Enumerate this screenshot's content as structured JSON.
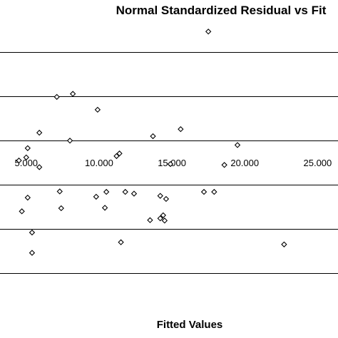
{
  "chart_data": {
    "type": "scatter",
    "title": "Normal Standardized Residual vs Fit",
    "xlabel": "Fitted Values",
    "ylabel": "",
    "x_ticks": [
      {
        "value": 5000,
        "label": "5.000"
      },
      {
        "value": 10000,
        "label": "10.000"
      },
      {
        "value": 15000,
        "label": "15.000"
      },
      {
        "value": 20000,
        "label": "20.000"
      },
      {
        "value": 25000,
        "label": "25.000"
      }
    ],
    "xlim": [
      3200,
      26400
    ],
    "ylim": [
      -3.5,
      3.2
    ],
    "y_gridlines": [
      2.5,
      1.5,
      0.5,
      -0.5,
      -1.5,
      -2.5
    ],
    "zero_line": 0,
    "grid": true,
    "legend": "none",
    "marker": "diamond-open",
    "colors": {
      "marker_stroke": "#000000",
      "marker_fill": "#ffffff",
      "gridline": "#000000"
    },
    "points": [
      {
        "x": 17500,
        "y": 2.97
      },
      {
        "x": 8200,
        "y": 1.56
      },
      {
        "x": 7100,
        "y": 1.49
      },
      {
        "x": 9900,
        "y": 1.2
      },
      {
        "x": 15600,
        "y": 0.76
      },
      {
        "x": 5900,
        "y": 0.68
      },
      {
        "x": 13700,
        "y": 0.6
      },
      {
        "x": 8000,
        "y": 0.5
      },
      {
        "x": 19500,
        "y": 0.4
      },
      {
        "x": 5100,
        "y": 0.33
      },
      {
        "x": 11400,
        "y": 0.21
      },
      {
        "x": 11200,
        "y": 0.15
      },
      {
        "x": 5000,
        "y": 0.12
      },
      {
        "x": 4500,
        "y": 0.05
      },
      {
        "x": 14900,
        "y": -0.03
      },
      {
        "x": 18600,
        "y": -0.05
      },
      {
        "x": 5900,
        "y": -0.1
      },
      {
        "x": 7300,
        "y": -0.65
      },
      {
        "x": 11800,
        "y": -0.66
      },
      {
        "x": 10500,
        "y": -0.66
      },
      {
        "x": 12400,
        "y": -0.7
      },
      {
        "x": 17200,
        "y": -0.66
      },
      {
        "x": 17900,
        "y": -0.66
      },
      {
        "x": 14200,
        "y": -0.75
      },
      {
        "x": 5100,
        "y": -0.79
      },
      {
        "x": 9800,
        "y": -0.77
      },
      {
        "x": 14600,
        "y": -0.82
      },
      {
        "x": 7400,
        "y": -1.03
      },
      {
        "x": 10400,
        "y": -1.02
      },
      {
        "x": 4700,
        "y": -1.1
      },
      {
        "x": 14400,
        "y": -1.19
      },
      {
        "x": 14200,
        "y": -1.26
      },
      {
        "x": 13500,
        "y": -1.3
      },
      {
        "x": 14500,
        "y": -1.31
      },
      {
        "x": 5400,
        "y": -1.58
      },
      {
        "x": 11500,
        "y": -1.8
      },
      {
        "x": 22700,
        "y": -1.85
      },
      {
        "x": 5400,
        "y": -2.04
      }
    ]
  }
}
